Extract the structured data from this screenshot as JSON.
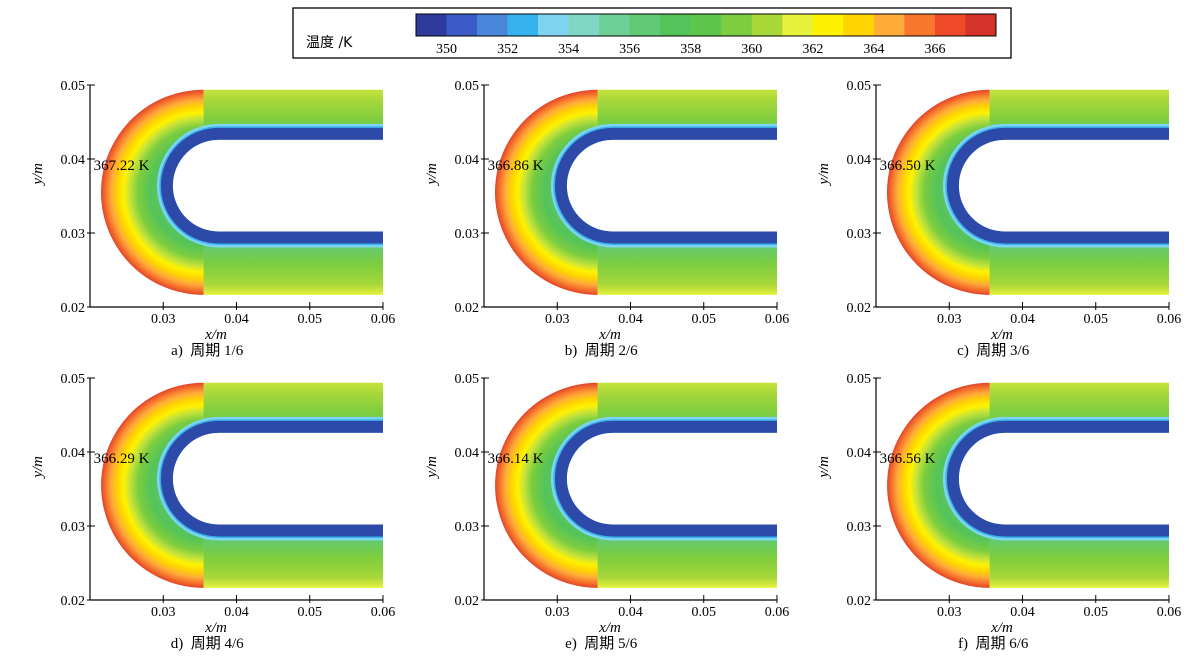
{
  "legend": {
    "title": "温度 /K",
    "ticks": [
      "350",
      "352",
      "354",
      "356",
      "358",
      "360",
      "362",
      "364",
      "366"
    ],
    "colors": [
      "#2e3a9c",
      "#3b5cc6",
      "#4a86d9",
      "#36b3ec",
      "#7fd4f0",
      "#80d6c4",
      "#6dd096",
      "#5fc975",
      "#54c359",
      "#5ec64b",
      "#7ccd3f",
      "#a8d83a",
      "#e6f23c",
      "#fff200",
      "#ffd400",
      "#ffac3a",
      "#f7782d",
      "#ef4a2a",
      "#d5332a"
    ]
  },
  "chart_data": [
    {
      "type": "heatmap",
      "panel_label": "a)  周期 1/6",
      "max_label": "367.22 K",
      "max_temperature": 367.22,
      "xlabel": "x/m",
      "ylabel": "y/m",
      "xlim": [
        0.02,
        0.06
      ],
      "ylim": [
        0.02,
        0.05
      ],
      "xticks": [
        "0.03",
        "0.04",
        "0.05",
        "0.06"
      ],
      "yticks": [
        "0.02",
        "0.03",
        "0.04",
        "0.05"
      ]
    },
    {
      "type": "heatmap",
      "panel_label": "b)  周期 2/6",
      "max_label": "366.86 K",
      "max_temperature": 366.86,
      "xlabel": "x/m",
      "ylabel": "y/m",
      "xlim": [
        0.02,
        0.06
      ],
      "ylim": [
        0.02,
        0.05
      ],
      "xticks": [
        "0.03",
        "0.04",
        "0.05",
        "0.06"
      ],
      "yticks": [
        "0.02",
        "0.03",
        "0.04",
        "0.05"
      ]
    },
    {
      "type": "heatmap",
      "panel_label": "c)  周期 3/6",
      "max_label": "366.50 K",
      "max_temperature": 366.5,
      "xlabel": "x/m",
      "ylabel": "y/m",
      "xlim": [
        0.02,
        0.06
      ],
      "ylim": [
        0.02,
        0.05
      ],
      "xticks": [
        "0.03",
        "0.04",
        "0.05",
        "0.06"
      ],
      "yticks": [
        "0.02",
        "0.03",
        "0.04",
        "0.05"
      ]
    },
    {
      "type": "heatmap",
      "panel_label": "d)  周期 4/6",
      "max_label": "366.29 K",
      "max_temperature": 366.29,
      "xlabel": "x/m",
      "ylabel": "y/m",
      "xlim": [
        0.02,
        0.06
      ],
      "ylim": [
        0.02,
        0.05
      ],
      "xticks": [
        "0.03",
        "0.04",
        "0.05",
        "0.06"
      ],
      "yticks": [
        "0.02",
        "0.03",
        "0.04",
        "0.05"
      ]
    },
    {
      "type": "heatmap",
      "panel_label": "e)  周期 5/6",
      "max_label": "366.14 K",
      "max_temperature": 366.14,
      "xlabel": "x/m",
      "ylabel": "y/m",
      "xlim": [
        0.02,
        0.06
      ],
      "ylim": [
        0.02,
        0.05
      ],
      "xticks": [
        "0.03",
        "0.04",
        "0.05",
        "0.06"
      ],
      "yticks": [
        "0.02",
        "0.03",
        "0.04",
        "0.05"
      ]
    },
    {
      "type": "heatmap",
      "panel_label": "f)  周期 6/6",
      "max_label": "366.56 K",
      "max_temperature": 366.56,
      "xlabel": "x/m",
      "ylabel": "y/m",
      "xlim": [
        0.02,
        0.06
      ],
      "ylim": [
        0.02,
        0.05
      ],
      "xticks": [
        "0.03",
        "0.04",
        "0.05",
        "0.06"
      ],
      "yticks": [
        "0.02",
        "0.03",
        "0.04",
        "0.05"
      ]
    }
  ]
}
